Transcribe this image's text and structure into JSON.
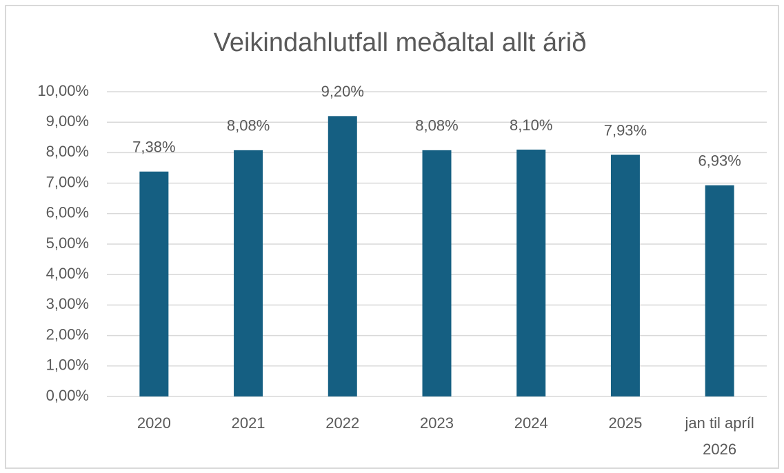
{
  "chart_data": {
    "type": "bar",
    "title": "Veikindahlutfall meðaltal allt árið",
    "categories": [
      "2020",
      "2021",
      "2022",
      "2023",
      "2024",
      "2025",
      "jan til apríl 2026"
    ],
    "values": [
      7.38,
      8.08,
      9.2,
      8.08,
      8.1,
      7.93,
      6.93
    ],
    "value_labels": [
      "7,38%",
      "8,08%",
      "9,20%",
      "8,08%",
      "8,10%",
      "7,93%",
      "6,93%"
    ],
    "color": "#155f82",
    "ylim": [
      0,
      10
    ],
    "yticks": [
      {
        "value": 0,
        "label": "0,00%"
      },
      {
        "value": 1,
        "label": "1,00%"
      },
      {
        "value": 2,
        "label": "2,00%"
      },
      {
        "value": 3,
        "label": "3,00%"
      },
      {
        "value": 4,
        "label": "4,00%"
      },
      {
        "value": 5,
        "label": "5,00%"
      },
      {
        "value": 6,
        "label": "6,00%"
      },
      {
        "value": 7,
        "label": "7,00%"
      },
      {
        "value": 8,
        "label": "8,00%"
      },
      {
        "value": 9,
        "label": "9,00%"
      },
      {
        "value": 10,
        "label": "10,00%"
      }
    ],
    "grid": true
  }
}
